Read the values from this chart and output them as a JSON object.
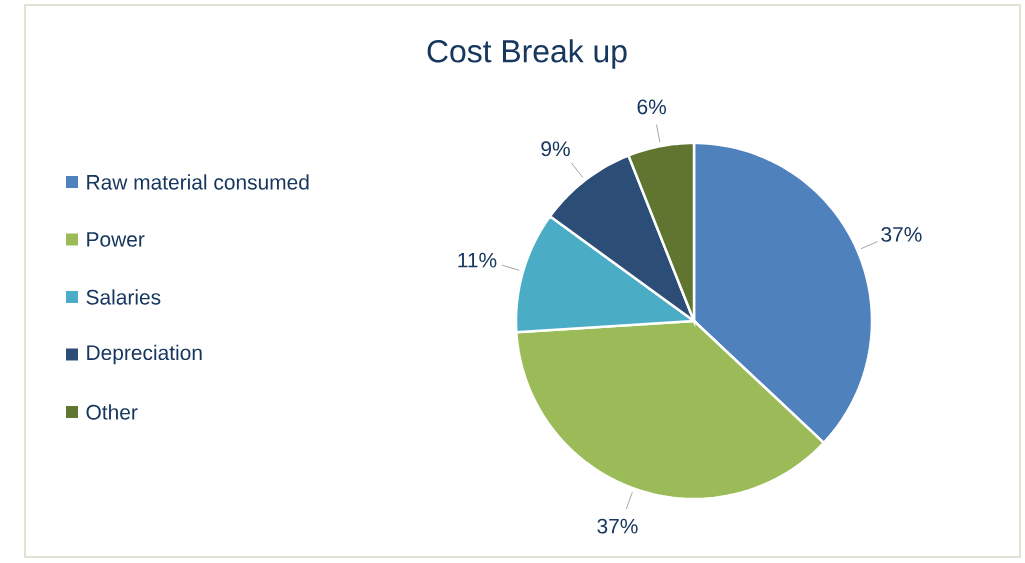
{
  "chart_data": {
    "type": "pie",
    "title": "Cost Break up",
    "categories": [
      "Raw material consumed",
      "Power",
      "Salaries",
      "Depreciation",
      "Other"
    ],
    "values": [
      37,
      37,
      11,
      9,
      6
    ],
    "colors": [
      "#4f81bd",
      "#9bbb59",
      "#4bacc6",
      "#2c4d75",
      "#5f7530"
    ],
    "value_labels": [
      "37%",
      "37%",
      "11%",
      "9%",
      "6%"
    ],
    "legend": "left"
  }
}
